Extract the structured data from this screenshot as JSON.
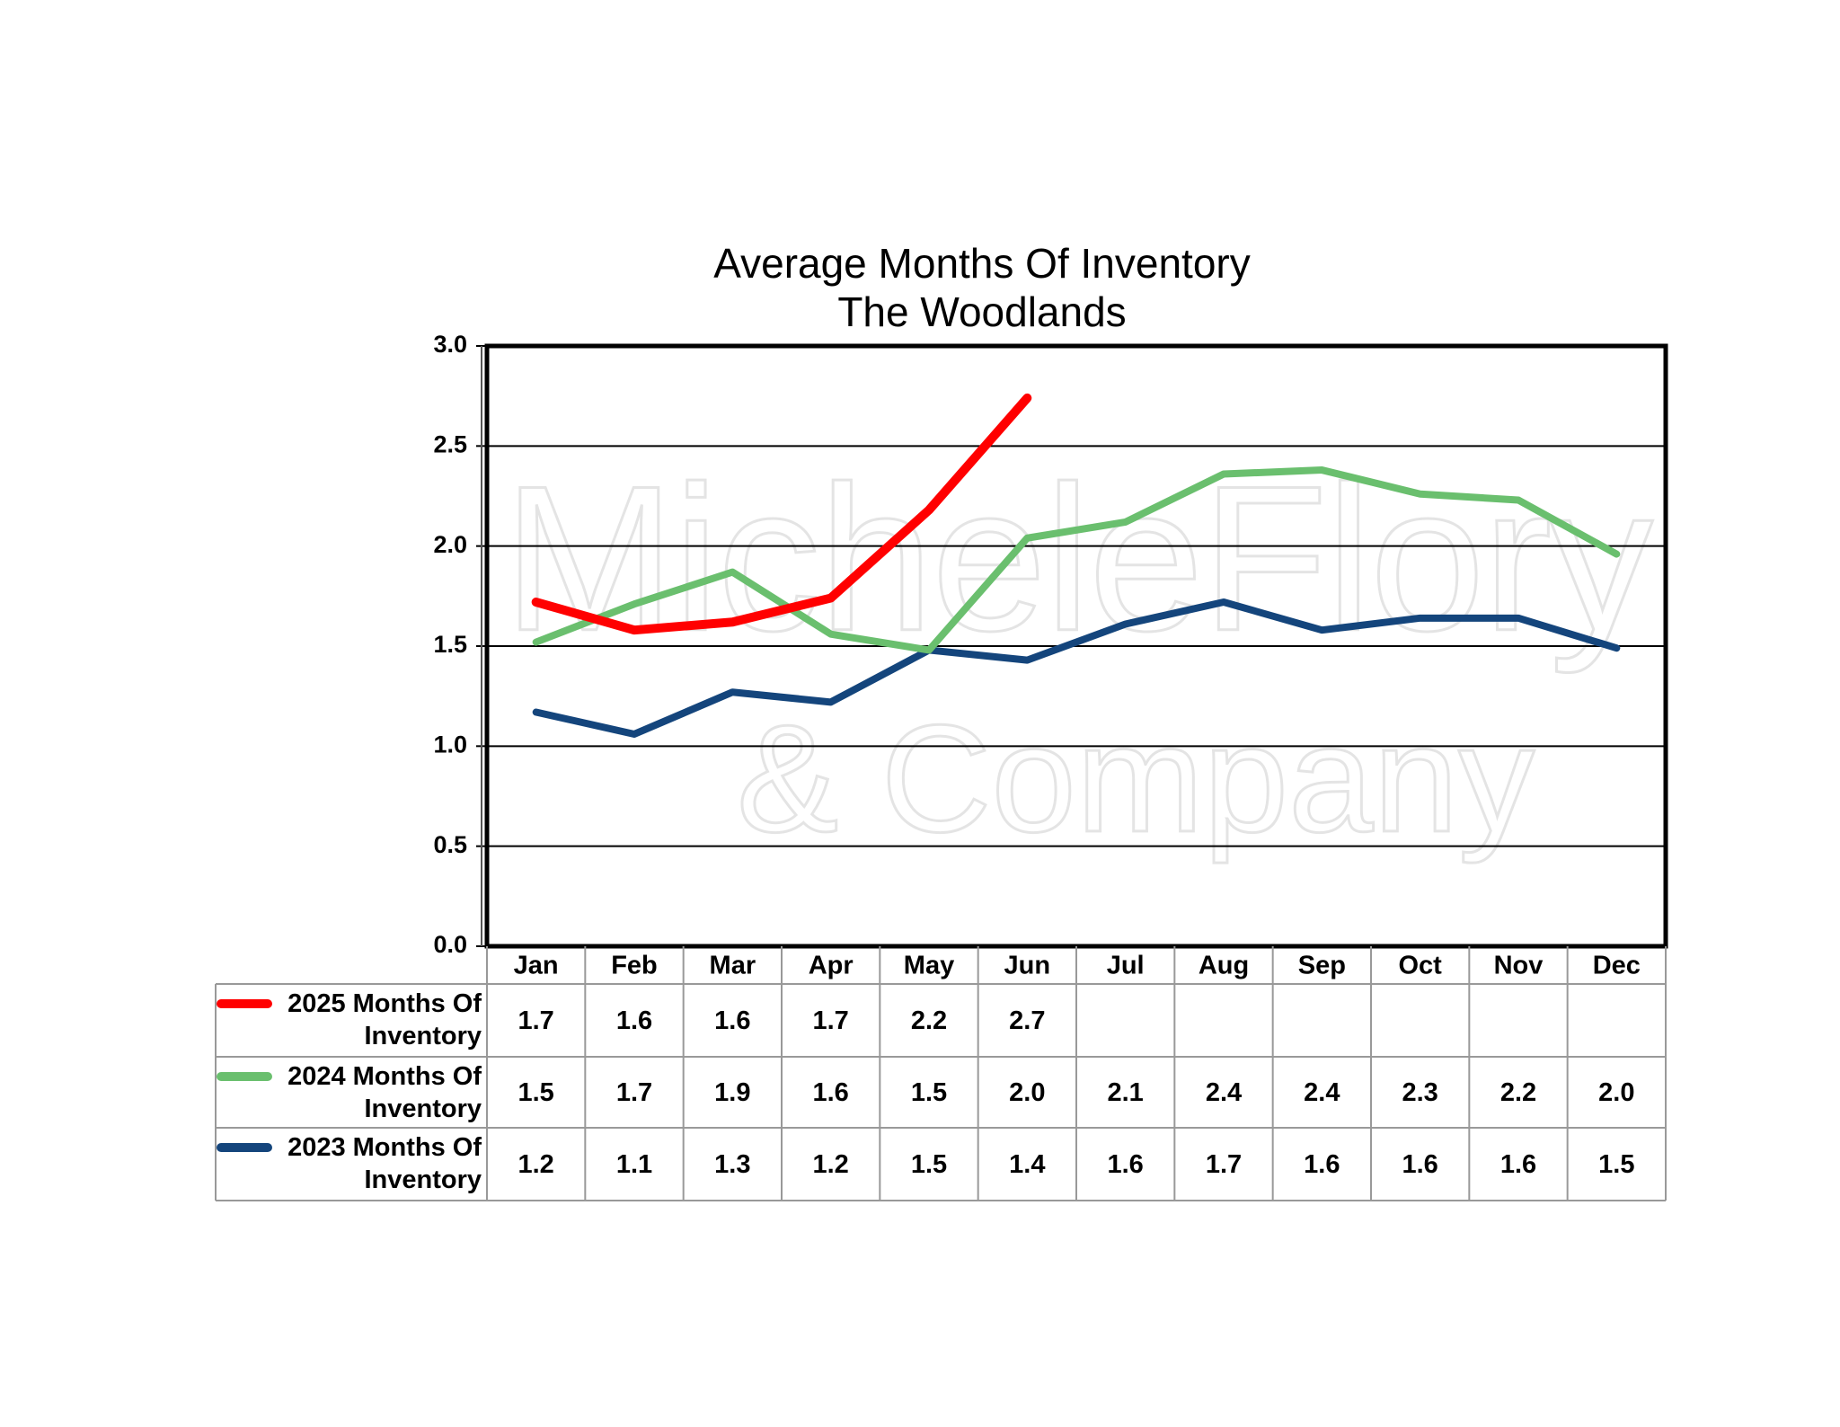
{
  "chart_data": {
    "type": "line",
    "title": "Average Months Of Inventory",
    "subtitle": "The Woodlands",
    "watermark": [
      "MicheleFlory",
      "& Company"
    ],
    "categories": [
      "Jan",
      "Feb",
      "Mar",
      "Apr",
      "May",
      "Jun",
      "Jul",
      "Aug",
      "Sep",
      "Oct",
      "Nov",
      "Dec"
    ],
    "series": [
      {
        "name": "2025 Months Of Inventory",
        "color": "#ff0000",
        "values": [
          1.72,
          1.58,
          1.62,
          1.74,
          2.18,
          2.74,
          null,
          null,
          null,
          null,
          null,
          null
        ],
        "value_labels": [
          "1.7",
          "1.6",
          "1.6",
          "1.7",
          "2.2",
          "2.7",
          null,
          null,
          null,
          null,
          null,
          null
        ]
      },
      {
        "name": "2024 Months Of Inventory",
        "color": "#6abf6e",
        "values": [
          1.52,
          1.71,
          1.87,
          1.56,
          1.48,
          2.04,
          2.12,
          2.36,
          2.38,
          2.26,
          2.23,
          1.96
        ],
        "value_labels": [
          "1.5",
          "1.7",
          "1.9",
          "1.6",
          "1.5",
          "2.0",
          "2.1",
          "2.4",
          "2.4",
          "2.3",
          "2.2",
          "2.0"
        ]
      },
      {
        "name": "2023 Months Of Inventory",
        "color": "#14457c",
        "values": [
          1.17,
          1.06,
          1.27,
          1.22,
          1.48,
          1.43,
          1.61,
          1.72,
          1.58,
          1.64,
          1.64,
          1.49
        ],
        "value_labels": [
          "1.2",
          "1.1",
          "1.3",
          "1.2",
          "1.5",
          "1.4",
          "1.6",
          "1.7",
          "1.6",
          "1.6",
          "1.6",
          "1.5"
        ]
      }
    ],
    "ylim": [
      0,
      3
    ],
    "yticks": [
      {
        "value": 0,
        "label": "0.0"
      },
      0.5,
      {
        "value": 1,
        "label": "1.0"
      },
      1.5,
      {
        "value": 2,
        "label": "2.0"
      },
      2.5,
      {
        "value": 3,
        "label": "3.0"
      }
    ],
    "grid": true
  }
}
